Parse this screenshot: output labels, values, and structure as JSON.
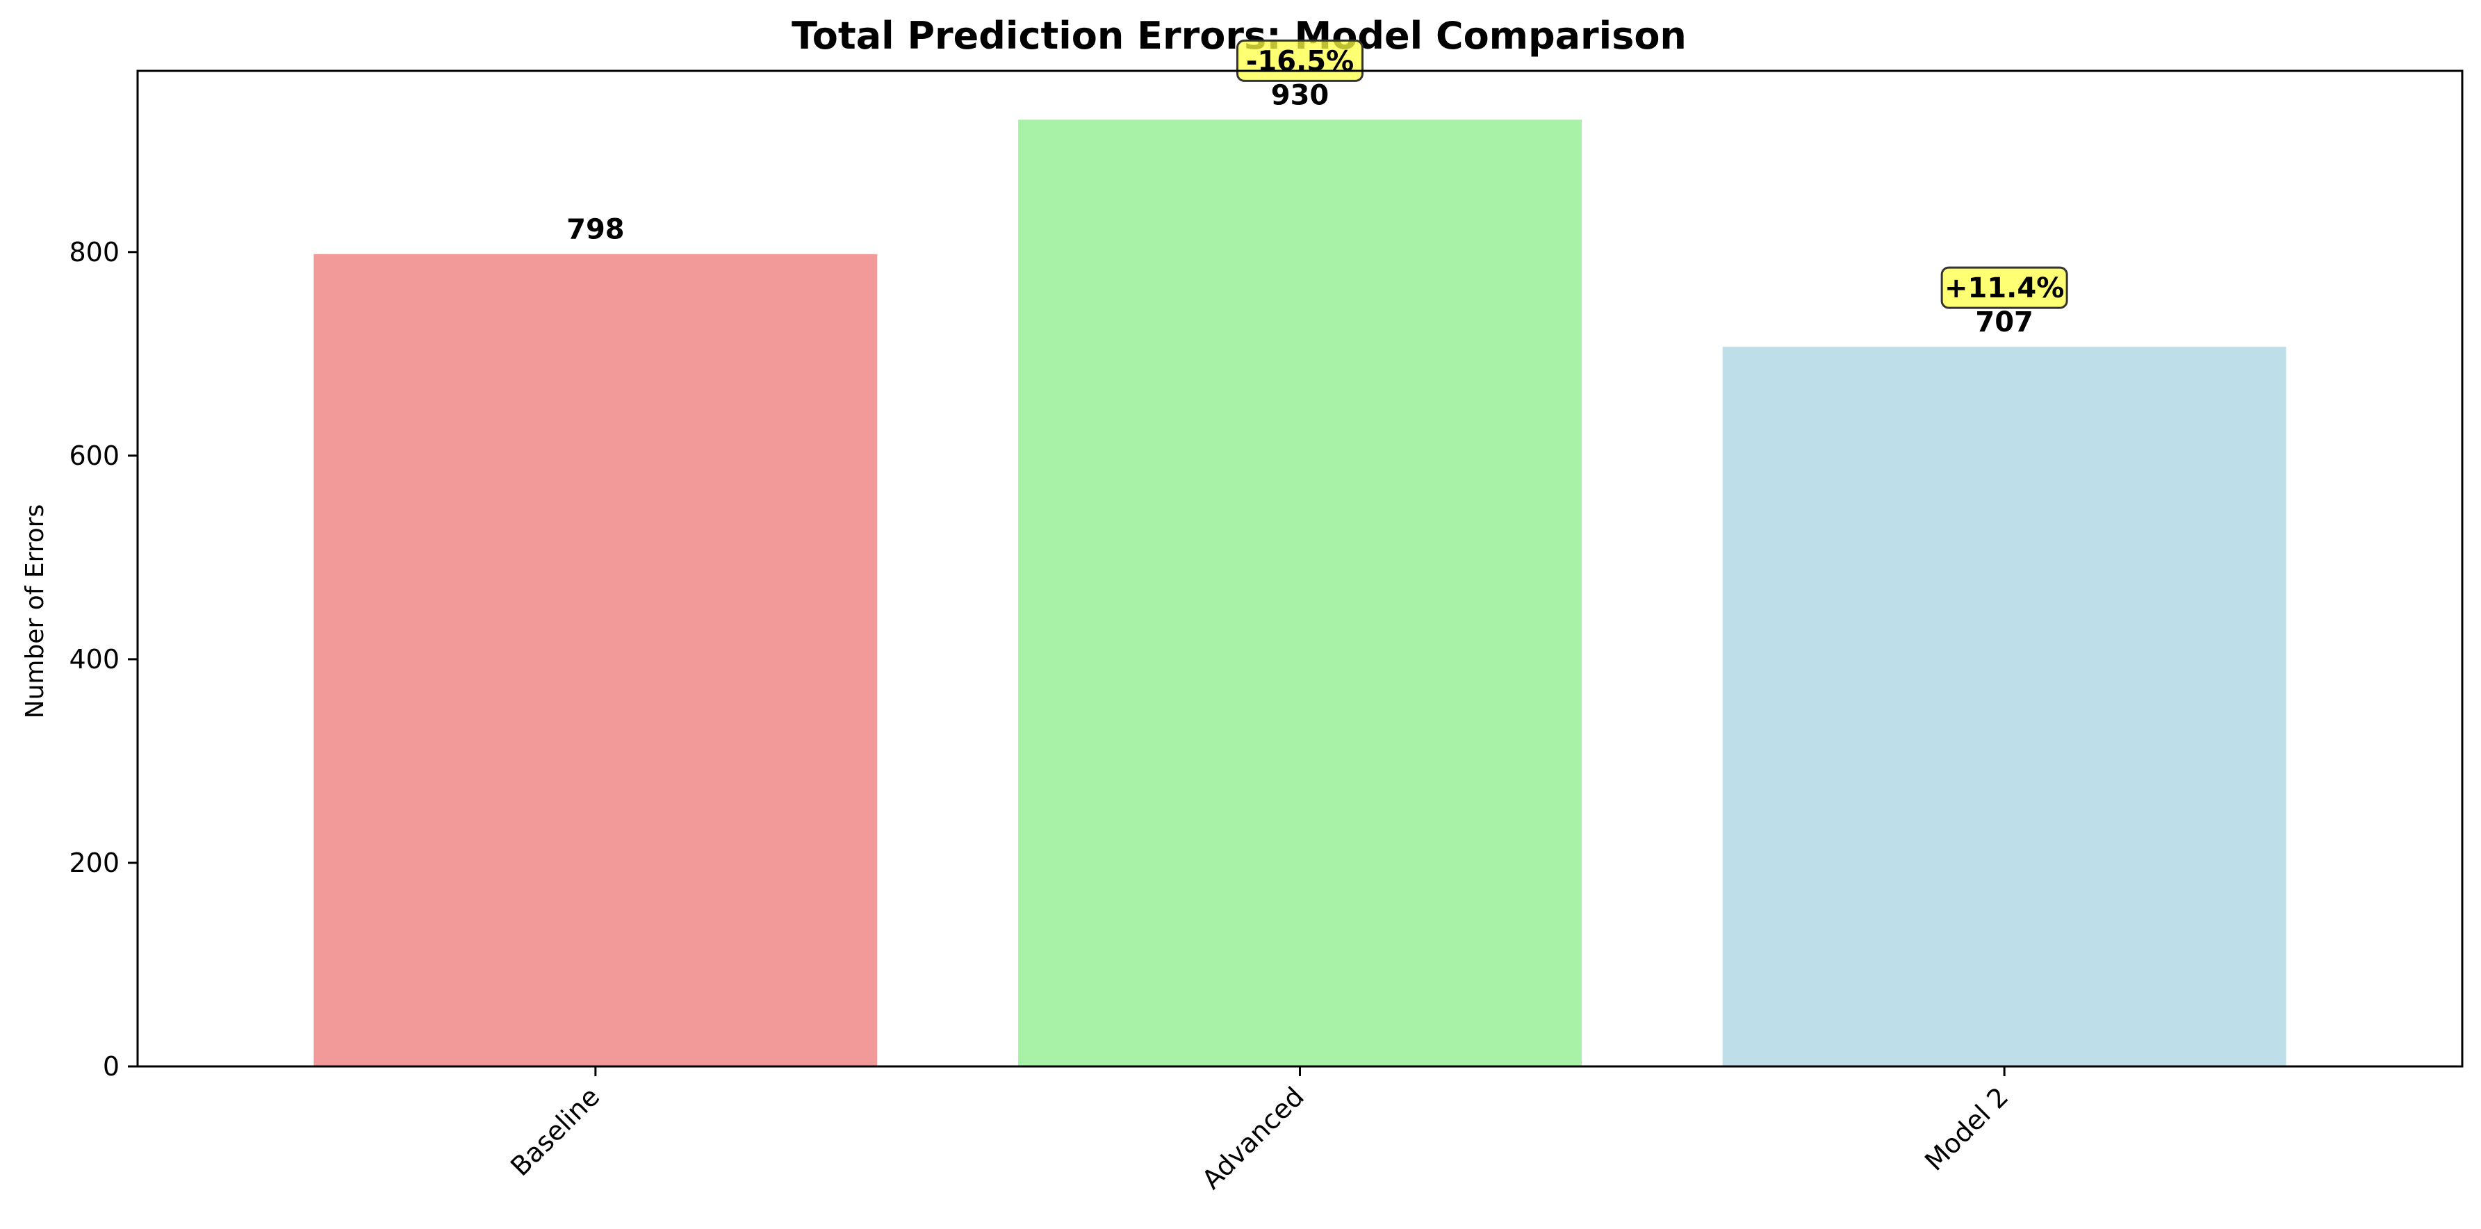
{
  "chart_data": {
    "type": "bar",
    "title": "Total Prediction Errors: Model Comparison",
    "xlabel": "",
    "ylabel": "Number of Errors",
    "categories": [
      "Baseline",
      "Advanced",
      "Model 2"
    ],
    "values": [
      798,
      930,
      707
    ],
    "value_labels": [
      "798",
      "930",
      "707"
    ],
    "change_labels": [
      "",
      "-16.5%",
      "+11.4%"
    ],
    "colors": [
      "#f29a99",
      "#a7f2a6",
      "#bedfea"
    ],
    "annotation_box_color": "#ffff44",
    "ylim": [
      0,
      978
    ],
    "yticks": [
      0,
      200,
      400,
      600,
      800
    ],
    "ytick_labels": [
      "0",
      "200",
      "400",
      "600",
      "800"
    ],
    "grid": false,
    "legend": "none"
  }
}
